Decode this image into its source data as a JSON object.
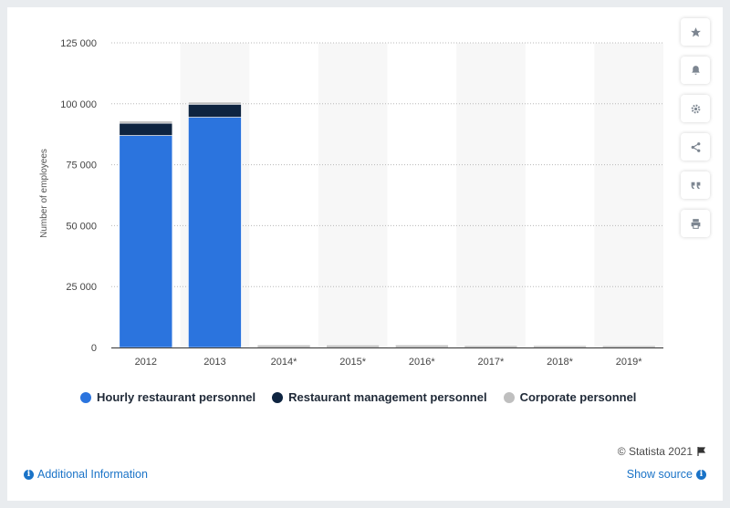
{
  "chart_data": {
    "type": "bar",
    "stacked": true,
    "categories": [
      "2012",
      "2013",
      "2014*",
      "2015*",
      "2016*",
      "2017*",
      "2018*",
      "2019*"
    ],
    "series": [
      {
        "name": "Hourly restaurant personnel",
        "color": "#2b74de",
        "values": [
          87000,
          94500,
          0,
          0,
          0,
          0,
          0,
          0
        ]
      },
      {
        "name": "Restaurant management personnel",
        "color": "#0e2440",
        "values": [
          5000,
          5300,
          0,
          0,
          0,
          0,
          0,
          0
        ]
      },
      {
        "name": "Corporate personnel",
        "color": "#bfbfbf",
        "values": [
          900,
          900,
          1000,
          1000,
          1000,
          800,
          700,
          700
        ]
      }
    ],
    "ylabel": "Number of employees",
    "ylim": [
      0,
      125000
    ],
    "yticks": [
      0,
      25000,
      50000,
      75000,
      100000,
      125000
    ],
    "ytick_labels": [
      "0",
      "25 000",
      "50 000",
      "75 000",
      "100 000",
      "125 000"
    ],
    "grid": true,
    "legend_position": "bottom"
  },
  "legend": {
    "items": [
      {
        "label": "Hourly restaurant personnel",
        "color": "#2b74de"
      },
      {
        "label": "Restaurant management personnel",
        "color": "#0e2440"
      },
      {
        "label": "Corporate personnel",
        "color": "#bfbfbf"
      }
    ]
  },
  "toolbar": {
    "icons": [
      "star-icon",
      "bell-icon",
      "gear-icon",
      "share-icon",
      "quote-icon",
      "print-icon"
    ]
  },
  "footer": {
    "copyright": "© Statista 2021",
    "additional_info": "Additional Information",
    "show_source": "Show source"
  }
}
